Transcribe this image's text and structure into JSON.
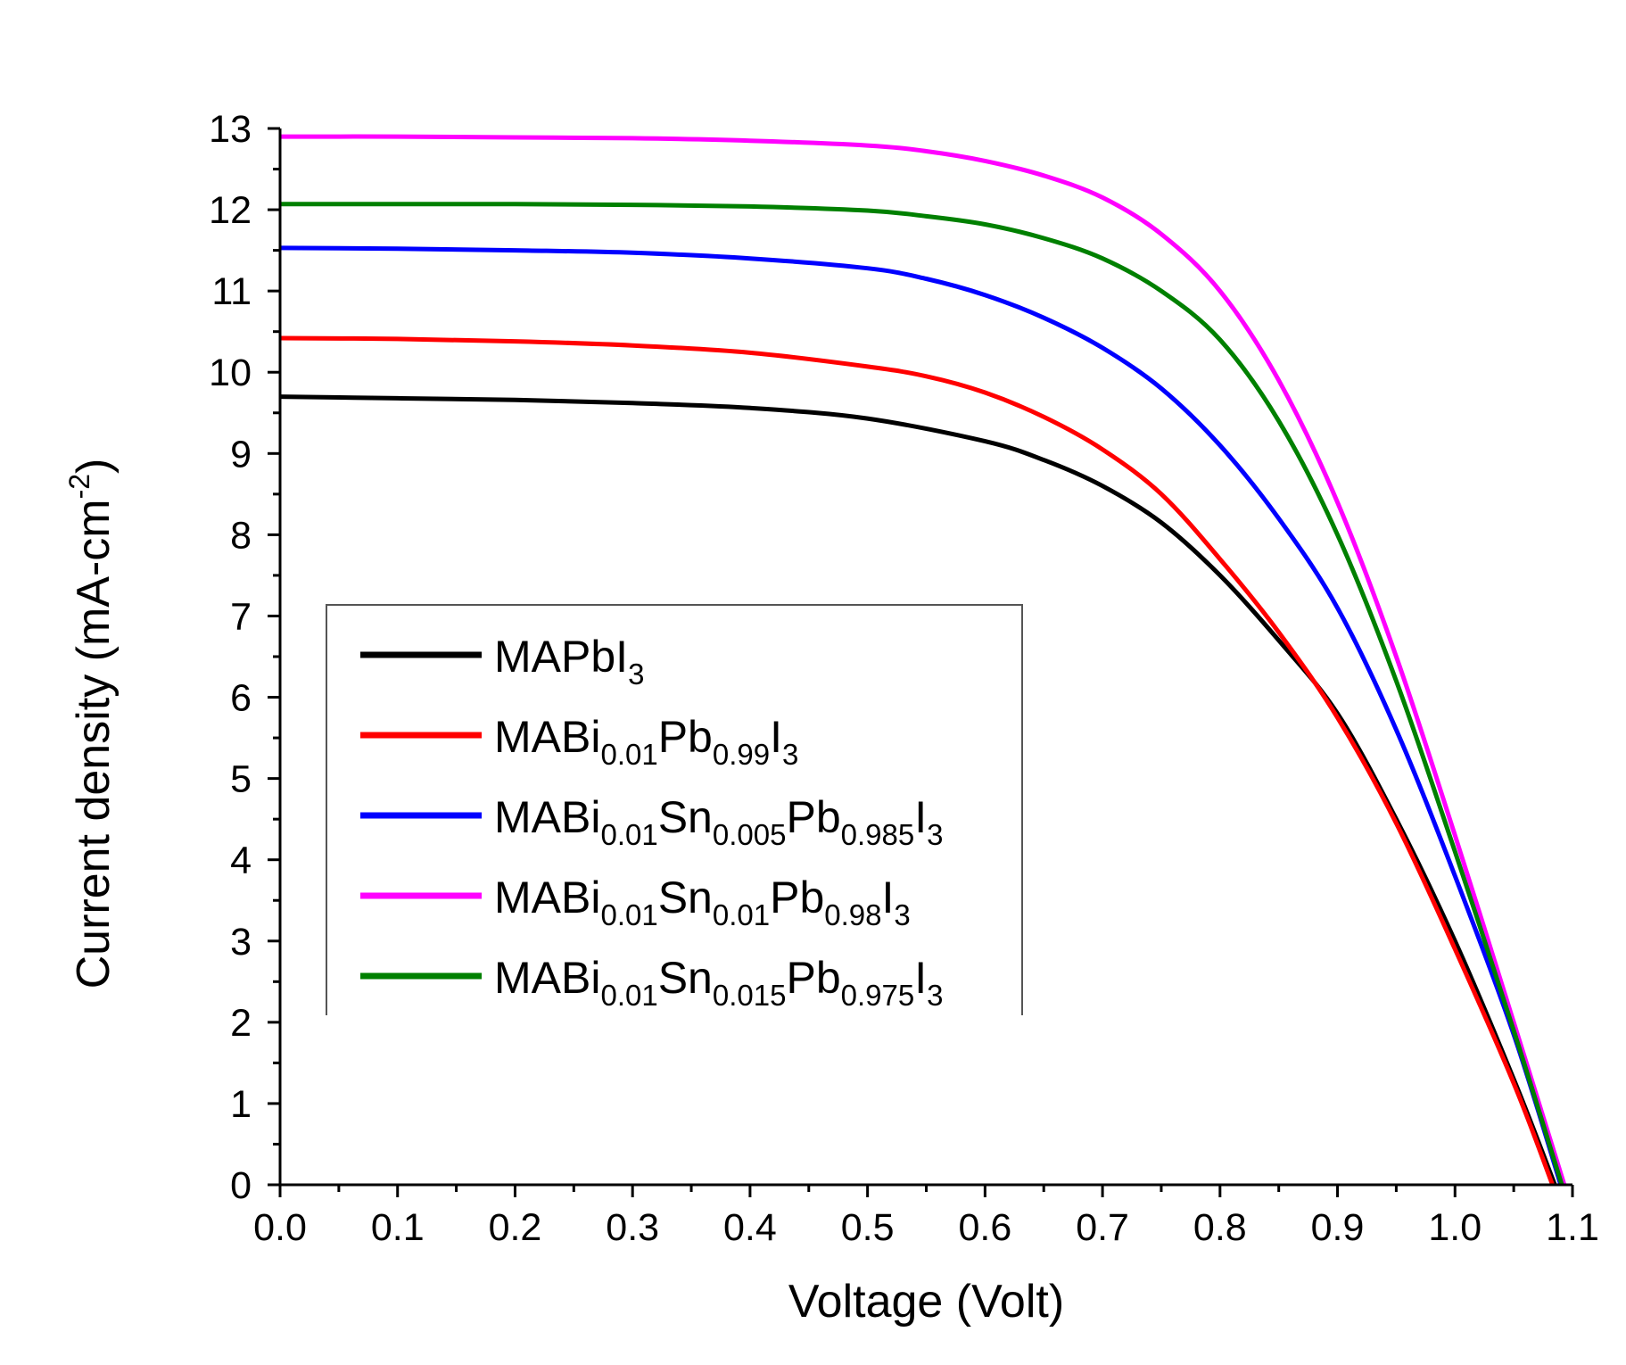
{
  "chart_data": {
    "type": "line",
    "title": "",
    "xlabel": "Voltage (Volt)",
    "ylabel_main": "Current density (mA-cm",
    "ylabel_sup": "-2",
    "ylabel_close": ")",
    "xlim": [
      0.0,
      1.1
    ],
    "ylim": [
      0,
      13
    ],
    "x_ticks": [
      "0.0",
      "0.1",
      "0.2",
      "0.3",
      "0.4",
      "0.5",
      "0.6",
      "0.7",
      "0.8",
      "0.9",
      "1.0",
      "1.1"
    ],
    "y_ticks": [
      "0",
      "1",
      "2",
      "3",
      "4",
      "5",
      "6",
      "7",
      "8",
      "9",
      "10",
      "11",
      "12",
      "13"
    ],
    "legend_position": "center-left",
    "series": [
      {
        "name": "MAPbI3",
        "color": "#000000",
        "label_parts": [
          {
            "t": "MAPbI",
            "sub": false
          },
          {
            "t": "3",
            "sub": true
          }
        ],
        "x": [
          0.0,
          0.1,
          0.2,
          0.3,
          0.4,
          0.5,
          0.6,
          0.65,
          0.7,
          0.75,
          0.8,
          0.85,
          0.9,
          0.95,
          1.0,
          1.05,
          1.085
        ],
        "y": [
          9.7,
          9.68,
          9.66,
          9.62,
          9.56,
          9.43,
          9.15,
          8.92,
          8.6,
          8.15,
          7.5,
          6.7,
          5.8,
          4.5,
          3.0,
          1.3,
          0.0
        ]
      },
      {
        "name": "MABi0.01Pb0.99I3",
        "color": "#ff0000",
        "label_parts": [
          {
            "t": "MABi",
            "sub": false
          },
          {
            "t": "0.01",
            "sub": true
          },
          {
            "t": "Pb",
            "sub": false
          },
          {
            "t": "0.99",
            "sub": true
          },
          {
            "t": "I",
            "sub": false
          },
          {
            "t": "3",
            "sub": true
          }
        ],
        "x": [
          0.0,
          0.1,
          0.2,
          0.3,
          0.4,
          0.5,
          0.55,
          0.6,
          0.65,
          0.7,
          0.75,
          0.8,
          0.85,
          0.9,
          0.95,
          1.0,
          1.05,
          1.083
        ],
        "y": [
          10.42,
          10.41,
          10.38,
          10.33,
          10.24,
          10.07,
          9.95,
          9.75,
          9.45,
          9.05,
          8.5,
          7.7,
          6.8,
          5.75,
          4.45,
          2.9,
          1.25,
          0.0
        ]
      },
      {
        "name": "MABi0.01Sn0.005Pb0.985I3",
        "color": "#0000ff",
        "label_parts": [
          {
            "t": "MABi",
            "sub": false
          },
          {
            "t": "0.01",
            "sub": true
          },
          {
            "t": "Sn",
            "sub": false
          },
          {
            "t": "0.005",
            "sub": true
          },
          {
            "t": "Pb",
            "sub": false
          },
          {
            "t": "0.985",
            "sub": true
          },
          {
            "t": "I",
            "sub": false
          },
          {
            "t": "3",
            "sub": true
          }
        ],
        "x": [
          0.0,
          0.1,
          0.2,
          0.3,
          0.4,
          0.5,
          0.55,
          0.6,
          0.65,
          0.7,
          0.75,
          0.8,
          0.85,
          0.9,
          0.95,
          1.0,
          1.05,
          1.09
        ],
        "y": [
          11.53,
          11.52,
          11.5,
          11.47,
          11.4,
          11.28,
          11.15,
          10.95,
          10.67,
          10.3,
          9.8,
          9.1,
          8.2,
          7.1,
          5.6,
          3.8,
          1.85,
          0.0
        ]
      },
      {
        "name": "MABi0.01Sn0.01Pb0.98I3",
        "color": "#ff00ff",
        "label_parts": [
          {
            "t": "MABi",
            "sub": false
          },
          {
            "t": "0.01",
            "sub": true
          },
          {
            "t": "Sn",
            "sub": false
          },
          {
            "t": "0.01",
            "sub": true
          },
          {
            "t": "Pb",
            "sub": false
          },
          {
            "t": "0.98",
            "sub": true
          },
          {
            "t": "I",
            "sub": false
          },
          {
            "t": "3",
            "sub": true
          }
        ],
        "x": [
          0.0,
          0.1,
          0.2,
          0.3,
          0.4,
          0.5,
          0.55,
          0.6,
          0.65,
          0.7,
          0.75,
          0.8,
          0.85,
          0.9,
          0.95,
          1.0,
          1.05,
          1.093
        ],
        "y": [
          12.9,
          12.9,
          12.89,
          12.88,
          12.85,
          12.79,
          12.72,
          12.6,
          12.42,
          12.15,
          11.7,
          11.0,
          9.9,
          8.4,
          6.5,
          4.3,
          2.0,
          0.0
        ]
      },
      {
        "name": "MABi0.01Sn0.015Pb0.975I3",
        "color": "#008000",
        "label_parts": [
          {
            "t": "MABi",
            "sub": false
          },
          {
            "t": "0.01",
            "sub": true
          },
          {
            "t": "Sn",
            "sub": false
          },
          {
            "t": "0.015",
            "sub": true
          },
          {
            "t": "Pb",
            "sub": false
          },
          {
            "t": "0.975",
            "sub": true
          },
          {
            "t": "I",
            "sub": false
          },
          {
            "t": "3",
            "sub": true
          }
        ],
        "x": [
          0.0,
          0.1,
          0.2,
          0.3,
          0.4,
          0.5,
          0.55,
          0.6,
          0.65,
          0.7,
          0.75,
          0.8,
          0.85,
          0.9,
          0.95,
          1.0,
          1.05,
          1.091
        ],
        "y": [
          12.07,
          12.07,
          12.07,
          12.06,
          12.04,
          11.99,
          11.92,
          11.82,
          11.65,
          11.4,
          11.0,
          10.4,
          9.4,
          8.0,
          6.2,
          4.1,
          1.9,
          0.0
        ]
      }
    ]
  }
}
